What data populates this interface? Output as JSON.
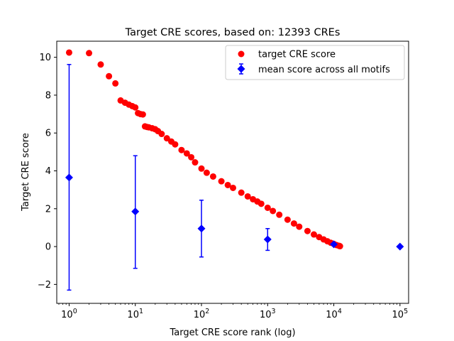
{
  "chart_data": {
    "type": "scatter",
    "title": "Target CRE scores, based on: 12393 CREs",
    "xlabel": "Target CRE score rank (log)",
    "ylabel": "Target CRE score",
    "xscale": "log",
    "xlim": [
      0.65,
      135000
    ],
    "ylim": [
      -3.0,
      10.85
    ],
    "grid": false,
    "legend_position": "top-right",
    "xticks": [
      {
        "value": 1,
        "base": "10",
        "exp": "0"
      },
      {
        "value": 10,
        "base": "10",
        "exp": "1"
      },
      {
        "value": 100,
        "base": "10",
        "exp": "2"
      },
      {
        "value": 1000,
        "base": "10",
        "exp": "3"
      },
      {
        "value": 10000,
        "base": "10",
        "exp": "4"
      },
      {
        "value": 100000,
        "base": "10",
        "exp": "5"
      }
    ],
    "yticks": [
      {
        "value": -2,
        "label": "−2"
      },
      {
        "value": 0,
        "label": "0"
      },
      {
        "value": 2,
        "label": "2"
      },
      {
        "value": 4,
        "label": "4"
      },
      {
        "value": 6,
        "label": "6"
      },
      {
        "value": 8,
        "label": "8"
      },
      {
        "value": 10,
        "label": "10"
      }
    ],
    "series": [
      {
        "name": "target CRE score",
        "kind": "scatter",
        "marker": "circle",
        "color": "#ff0000",
        "points": [
          [
            1,
            10.25
          ],
          [
            2,
            10.22
          ],
          [
            3,
            9.62
          ],
          [
            4,
            9.0
          ],
          [
            5,
            8.62
          ],
          [
            6,
            7.72
          ],
          [
            7,
            7.6
          ],
          [
            8,
            7.5
          ],
          [
            9,
            7.42
          ],
          [
            10,
            7.35
          ],
          [
            11,
            7.05
          ],
          [
            12,
            7.0
          ],
          [
            13,
            6.98
          ],
          [
            14,
            6.35
          ],
          [
            15,
            6.32
          ],
          [
            16,
            6.3
          ],
          [
            18,
            6.25
          ],
          [
            20,
            6.2
          ],
          [
            22,
            6.1
          ],
          [
            25,
            5.95
          ],
          [
            30,
            5.72
          ],
          [
            35,
            5.55
          ],
          [
            40,
            5.4
          ],
          [
            50,
            5.1
          ],
          [
            60,
            4.92
          ],
          [
            70,
            4.72
          ],
          [
            80,
            4.45
          ],
          [
            100,
            4.12
          ],
          [
            120,
            3.9
          ],
          [
            150,
            3.7
          ],
          [
            200,
            3.45
          ],
          [
            250,
            3.25
          ],
          [
            300,
            3.1
          ],
          [
            400,
            2.85
          ],
          [
            500,
            2.65
          ],
          [
            600,
            2.5
          ],
          [
            700,
            2.38
          ],
          [
            800,
            2.26
          ],
          [
            1000,
            2.05
          ],
          [
            1200,
            1.88
          ],
          [
            1500,
            1.68
          ],
          [
            2000,
            1.42
          ],
          [
            2500,
            1.22
          ],
          [
            3000,
            1.05
          ],
          [
            4000,
            0.82
          ],
          [
            5000,
            0.64
          ],
          [
            6000,
            0.5
          ],
          [
            7000,
            0.38
          ],
          [
            8000,
            0.28
          ],
          [
            9000,
            0.2
          ],
          [
            10000,
            0.14
          ],
          [
            11000,
            0.08
          ],
          [
            12000,
            0.04
          ],
          [
            12393,
            0.02
          ]
        ]
      },
      {
        "name": "mean score across all motifs",
        "kind": "errorbar",
        "marker": "diamond",
        "color": "#0000ff",
        "points": [
          {
            "x": 1,
            "y": 3.65,
            "ylow": -2.3,
            "yhigh": 9.62
          },
          {
            "x": 10,
            "y": 1.85,
            "ylow": -1.15,
            "yhigh": 4.8
          },
          {
            "x": 100,
            "y": 0.95,
            "ylow": -0.55,
            "yhigh": 2.45
          },
          {
            "x": 1000,
            "y": 0.38,
            "ylow": -0.2,
            "yhigh": 0.95
          },
          {
            "x": 10000,
            "y": 0.12,
            "ylow": 0.08,
            "yhigh": 0.16
          },
          {
            "x": 100000,
            "y": 0.0,
            "ylow": 0.0,
            "yhigh": 0.0
          }
        ]
      }
    ]
  }
}
